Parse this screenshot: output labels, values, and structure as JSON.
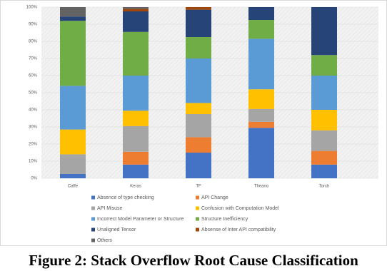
{
  "chart_data": {
    "type": "stacked_bar",
    "caption": "Figure 2: Stack Overflow Root Cause Classification",
    "categories": [
      "Caffe",
      "Keras",
      "TF",
      "Theano",
      "Torch"
    ],
    "series": [
      {
        "name": "Absence of type checking",
        "color": "#4472c4",
        "values": [
          2.5,
          8,
          15,
          29.5,
          8
        ]
      },
      {
        "name": "API Change",
        "color": "#ed7d31",
        "values": [
          0,
          7.5,
          9,
          3.5,
          8
        ]
      },
      {
        "name": "API Misuse",
        "color": "#a5a5a5",
        "values": [
          11.5,
          15,
          13.5,
          7.5,
          12
        ]
      },
      {
        "name": "Confusion with Computation Model",
        "color": "#ffc000",
        "values": [
          14.5,
          9,
          6.5,
          11.5,
          12
        ]
      },
      {
        "name": "Incorrect Model Parameter or Structure",
        "color": "#5b9bd5",
        "values": [
          25.5,
          20.5,
          26,
          29.5,
          20
        ]
      },
      {
        "name": "Structure Inefficiency",
        "color": "#70ad47",
        "values": [
          38,
          25.5,
          12.5,
          11,
          12
        ]
      },
      {
        "name": "Unaligned Tensor",
        "color": "#264478",
        "values": [
          2.5,
          12,
          16,
          7.5,
          28
        ]
      },
      {
        "name": "Absense of Inter API compatibility",
        "color": "#9e480e",
        "values": [
          0,
          1.5,
          1.5,
          0,
          0
        ]
      },
      {
        "name": "Others",
        "color": "#636363",
        "values": [
          5.5,
          1,
          0,
          0,
          0
        ]
      }
    ],
    "ylim": [
      0,
      100
    ],
    "yticks": [
      {
        "value": 0,
        "label": "0%"
      },
      {
        "value": 10,
        "label": "10%"
      },
      {
        "value": 20,
        "label": "20%"
      },
      {
        "value": 30,
        "label": "30%"
      },
      {
        "value": 40,
        "label": "40%"
      },
      {
        "value": 50,
        "label": "50%"
      },
      {
        "value": 60,
        "label": "60%"
      },
      {
        "value": 70,
        "label": "70%"
      },
      {
        "value": 80,
        "label": "80%"
      },
      {
        "value": 90,
        "label": "90%"
      },
      {
        "value": 100,
        "label": "100%"
      }
    ],
    "grid": true,
    "legend": "bottom"
  }
}
